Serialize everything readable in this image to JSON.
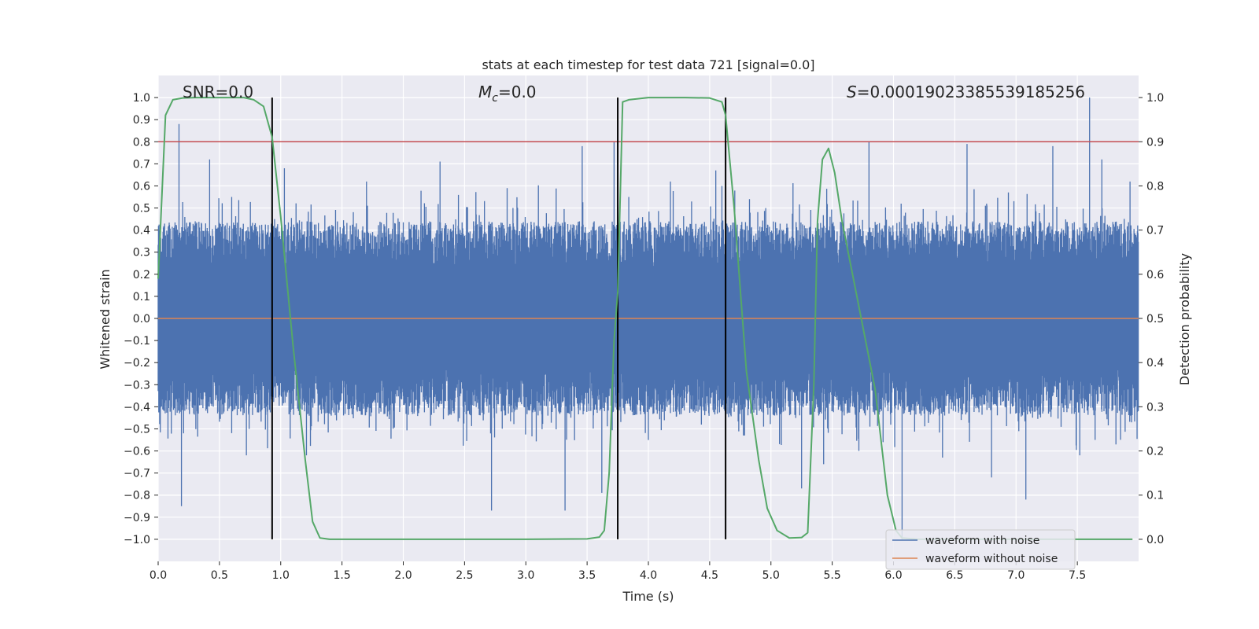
{
  "chart_data": {
    "type": "line",
    "title": "stats at each timestep for test data 721 [signal=0.0]",
    "xlabel": "Time (s)",
    "ylabel": "Whitened strain",
    "y2label": "Detection probability",
    "xlim": [
      0.0,
      8.0
    ],
    "ylim": [
      -1.1,
      1.1
    ],
    "y2lim": [
      -0.05,
      1.05
    ],
    "xticks": [
      0.0,
      0.5,
      1.0,
      1.5,
      2.0,
      2.5,
      3.0,
      3.5,
      4.0,
      4.5,
      5.0,
      5.5,
      6.0,
      6.5,
      7.0,
      7.5
    ],
    "xtick_labels": [
      "0.0",
      "0.5",
      "1.0",
      "1.5",
      "2.0",
      "2.5",
      "3.0",
      "3.5",
      "4.0",
      "4.5",
      "5.0",
      "5.5",
      "6.0",
      "6.5",
      "7.0",
      "7.5"
    ],
    "yticks": [
      1.0,
      0.9,
      0.8,
      0.7,
      0.6,
      0.5,
      0.4,
      0.3,
      0.2,
      0.1,
      0.0,
      -0.1,
      -0.2,
      -0.3,
      -0.4,
      -0.5,
      -0.6,
      -0.7,
      -0.8,
      -0.9,
      -1.0
    ],
    "ytick_labels": [
      "1.0",
      "0.9",
      "0.8",
      "0.7",
      "0.6",
      "0.5",
      "0.4",
      "0.3",
      "0.2",
      "0.1",
      "0.0",
      "−0.1",
      "−0.2",
      "−0.3",
      "−0.4",
      "−0.5",
      "−0.6",
      "−0.7",
      "−0.8",
      "−0.9",
      "−1.0"
    ],
    "y2ticks": [
      1.0,
      0.9,
      0.8,
      0.7,
      0.6,
      0.5,
      0.4,
      0.3,
      0.2,
      0.1,
      0.0
    ],
    "y2tick_labels": [
      "1.0",
      "0.9",
      "0.8",
      "0.7",
      "0.6",
      "0.5",
      "0.4",
      "0.3",
      "0.2",
      "0.1",
      "0.0"
    ],
    "annotations": {
      "snr": "SNR=0.0",
      "mc_symbol": "M",
      "mc_sub": "c",
      "mc_value": "=0.0",
      "s_symbol": "S",
      "s_value": "=0.00019023385539185256"
    },
    "threshold": 0.9,
    "vlines": [
      0.93,
      3.75,
      4.63
    ],
    "series": [
      {
        "name": "waveform with noise",
        "axis": "left",
        "color": "#4c72b0",
        "description": "dense noise, roughly within ±0.4 with spikes up to ±1.0",
        "spikes": [
          {
            "x": 0.17,
            "y": 0.88
          },
          {
            "x": 0.19,
            "y": -0.85
          },
          {
            "x": 0.42,
            "y": 0.72
          },
          {
            "x": 0.6,
            "y": 0.55
          },
          {
            "x": 0.72,
            "y": -0.62
          },
          {
            "x": 1.03,
            "y": 0.68
          },
          {
            "x": 1.21,
            "y": -0.62
          },
          {
            "x": 1.7,
            "y": 0.62
          },
          {
            "x": 2.3,
            "y": 0.71
          },
          {
            "x": 2.72,
            "y": -0.87
          },
          {
            "x": 3.32,
            "y": -0.87
          },
          {
            "x": 3.46,
            "y": 0.78
          },
          {
            "x": 3.62,
            "y": -0.79
          },
          {
            "x": 3.72,
            "y": 0.8
          },
          {
            "x": 3.84,
            "y": 0.55
          },
          {
            "x": 4.18,
            "y": 0.62
          },
          {
            "x": 4.55,
            "y": 0.67
          },
          {
            "x": 5.25,
            "y": -0.77
          },
          {
            "x": 5.43,
            "y": -0.66
          },
          {
            "x": 5.8,
            "y": 0.8
          },
          {
            "x": 6.07,
            "y": -1.0
          },
          {
            "x": 6.4,
            "y": -0.63
          },
          {
            "x": 6.6,
            "y": 0.79
          },
          {
            "x": 6.8,
            "y": -0.72
          },
          {
            "x": 7.08,
            "y": -0.82
          },
          {
            "x": 7.3,
            "y": 0.78
          },
          {
            "x": 7.52,
            "y": -0.62
          },
          {
            "x": 7.6,
            "y": 1.0
          },
          {
            "x": 7.7,
            "y": 0.72
          },
          {
            "x": 7.93,
            "y": 0.62
          }
        ]
      },
      {
        "name": "waveform without noise",
        "axis": "left",
        "color": "#dd8452",
        "x": [
          0.0,
          8.0
        ],
        "values": [
          0.0,
          0.0
        ]
      },
      {
        "name": "detection probability",
        "axis": "right",
        "color": "#55a868",
        "x": [
          0.0,
          0.06,
          0.12,
          0.2,
          0.3,
          0.5,
          0.7,
          0.78,
          0.86,
          0.93,
          1.0,
          1.1,
          1.2,
          1.26,
          1.32,
          1.4,
          2.0,
          3.0,
          3.5,
          3.6,
          3.64,
          3.68,
          3.72,
          3.75,
          3.79,
          3.84,
          4.0,
          4.3,
          4.5,
          4.6,
          4.63,
          4.7,
          4.8,
          4.9,
          4.97,
          5.05,
          5.15,
          5.25,
          5.3,
          5.35,
          5.38,
          5.42,
          5.47,
          5.52,
          5.58,
          5.68,
          5.85,
          5.95,
          6.02,
          6.07,
          6.2,
          6.5,
          7.0,
          7.5,
          7.95
        ],
        "values": [
          0.59,
          0.96,
          0.995,
          0.999,
          1.0,
          1.0,
          1.0,
          0.995,
          0.98,
          0.91,
          0.73,
          0.44,
          0.18,
          0.04,
          0.003,
          0.0,
          0.0,
          0.0,
          0.001,
          0.005,
          0.02,
          0.15,
          0.45,
          0.56,
          0.99,
          0.995,
          1.0,
          1.0,
          0.999,
          0.99,
          0.96,
          0.75,
          0.38,
          0.18,
          0.07,
          0.02,
          0.003,
          0.004,
          0.015,
          0.35,
          0.72,
          0.86,
          0.885,
          0.83,
          0.72,
          0.58,
          0.34,
          0.1,
          0.02,
          0.003,
          0.0,
          0.0,
          0.0,
          0.0,
          0.0
        ]
      }
    ],
    "legend": {
      "placement": "lower-right",
      "entries": [
        {
          "label": "waveform with noise",
          "color": "#4c72b0"
        },
        {
          "label": "waveform without noise",
          "color": "#dd8452"
        }
      ]
    },
    "grid": true,
    "colors": {
      "background": "#eaeaf2",
      "grid": "#ffffff",
      "threshold": "#c44e52",
      "vline": "#000000"
    }
  }
}
